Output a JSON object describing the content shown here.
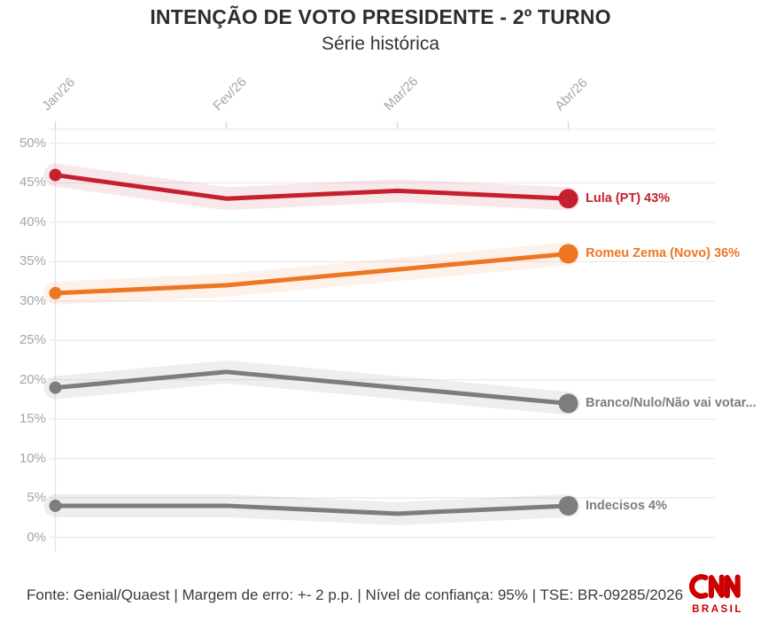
{
  "title": "INTENÇÃO DE VOTO PRESIDENTE - 2º TURNO",
  "subtitle": "Série histórica",
  "footer": "Fonte: Genial/Quaest | Margem de erro: +- 2 p.p. | Nível de confiança: 95% | TSE: BR-09285/2026",
  "logo": {
    "name": "CNN",
    "sub": "BRASIL",
    "color": "#cc0000"
  },
  "chart_data": {
    "type": "line",
    "title": "INTENÇÃO DE VOTO PRESIDENTE - 2º TURNO",
    "subtitle": "Série histórica",
    "x": [
      "Jan/26",
      "Fev/26",
      "Mar/26",
      "Abr/26"
    ],
    "yticks": [
      "0%",
      "5%",
      "10%",
      "15%",
      "20%",
      "25%",
      "30%",
      "35%",
      "40%",
      "45%",
      "50%"
    ],
    "ylim": [
      0,
      50
    ],
    "grid": true,
    "legend_position": "right",
    "series": [
      {
        "name": "Lula (PT)",
        "legend": "Lula (PT) 43%",
        "values": [
          46,
          43,
          44,
          43
        ],
        "color": "#c5202e",
        "band_color": "rgba(197,32,46,0.10)"
      },
      {
        "name": "Romeu Zema (Novo)",
        "legend": "Romeu Zema (Novo) 36%",
        "values": [
          31,
          32,
          34,
          36
        ],
        "color": "#ee7623",
        "band_color": "rgba(238,118,35,0.10)"
      },
      {
        "name": "Branco/Nulo/Não vai votar",
        "legend": "Branco/Nulo/Não vai votar...",
        "values": [
          19,
          21,
          19,
          17
        ],
        "color": "#7d7d7d",
        "band_color": "rgba(125,125,125,0.13)"
      },
      {
        "name": "Indecisos",
        "legend": "Indecisos 4%",
        "values": [
          4,
          4,
          3,
          4
        ],
        "color": "#7d7d7d",
        "band_color": "rgba(125,125,125,0.13)"
      }
    ]
  }
}
